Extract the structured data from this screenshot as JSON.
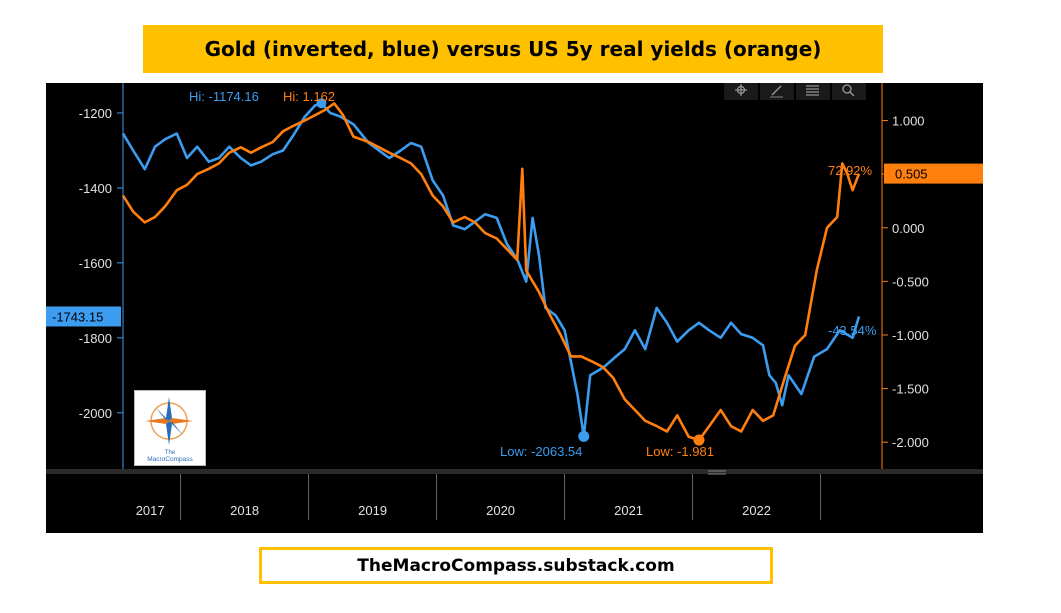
{
  "header": {
    "title": "Gold (inverted, blue) versus US 5y real yields (orange)"
  },
  "footer": {
    "source": "TheMacroCompass.substack.com"
  },
  "logo": {
    "line1": "The",
    "line2": "MacroCompass"
  },
  "colors": {
    "gold": "#3c9cf0",
    "yields": "#ff7f0e",
    "background": "#000000",
    "accent": "#ffc000"
  },
  "toolbar": {
    "icons": [
      "crosshair-icon",
      "pencil-icon",
      "news-icon",
      "search-icon"
    ]
  },
  "chart_data": {
    "type": "line",
    "x": [
      "2017",
      "2018",
      "2019",
      "2020",
      "2021",
      "2022"
    ],
    "axes": {
      "left": {
        "ticks": [
          "-1200",
          "-1400",
          "-1600",
          "-1800",
          "-2000"
        ],
        "values": [
          -1200,
          -1400,
          -1600,
          -1800,
          -2000
        ],
        "ylim": [
          -2150,
          -1120
        ]
      },
      "right": {
        "ticks": [
          "1.000",
          "0.500",
          "0.000",
          "-0.500",
          "-1.000",
          "-1.500",
          "-2.000"
        ],
        "values": [
          1.0,
          0.5,
          0.0,
          -0.5,
          -1.0,
          -1.5,
          -2.0
        ],
        "ylim": [
          -2.25,
          1.35
        ]
      }
    },
    "series": [
      {
        "axis": "left",
        "points": [
          [
            2017.0,
            -1255
          ],
          [
            2017.08,
            -1300
          ],
          [
            2017.17,
            -1350
          ],
          [
            2017.25,
            -1290
          ],
          [
            2017.33,
            -1270
          ],
          [
            2017.42,
            -1255
          ],
          [
            2017.5,
            -1320
          ],
          [
            2017.58,
            -1290
          ],
          [
            2017.67,
            -1330
          ],
          [
            2017.75,
            -1320
          ],
          [
            2017.83,
            -1290
          ],
          [
            2017.92,
            -1320
          ],
          [
            2018.0,
            -1340
          ],
          [
            2018.08,
            -1330
          ],
          [
            2018.17,
            -1310
          ],
          [
            2018.25,
            -1300
          ],
          [
            2018.33,
            -1260
          ],
          [
            2018.42,
            -1210
          ],
          [
            2018.5,
            -1180
          ],
          [
            2018.55,
            -1174
          ],
          [
            2018.62,
            -1200
          ],
          [
            2018.7,
            -1210
          ],
          [
            2018.8,
            -1230
          ],
          [
            2018.92,
            -1280
          ],
          [
            2019.0,
            -1300
          ],
          [
            2019.08,
            -1320
          ],
          [
            2019.17,
            -1300
          ],
          [
            2019.25,
            -1280
          ],
          [
            2019.33,
            -1290
          ],
          [
            2019.42,
            -1380
          ],
          [
            2019.5,
            -1420
          ],
          [
            2019.58,
            -1500
          ],
          [
            2019.67,
            -1510
          ],
          [
            2019.75,
            -1490
          ],
          [
            2019.83,
            -1470
          ],
          [
            2019.92,
            -1480
          ],
          [
            2020.0,
            -1550
          ],
          [
            2020.08,
            -1590
          ],
          [
            2020.15,
            -1650
          ],
          [
            2020.2,
            -1480
          ],
          [
            2020.25,
            -1580
          ],
          [
            2020.3,
            -1720
          ],
          [
            2020.38,
            -1740
          ],
          [
            2020.45,
            -1780
          ],
          [
            2020.55,
            -1950
          ],
          [
            2020.6,
            -2063
          ],
          [
            2020.65,
            -1900
          ],
          [
            2020.75,
            -1880
          ],
          [
            2020.85,
            -1850
          ],
          [
            2020.92,
            -1830
          ],
          [
            2021.0,
            -1780
          ],
          [
            2021.08,
            -1830
          ],
          [
            2021.17,
            -1720
          ],
          [
            2021.25,
            -1760
          ],
          [
            2021.33,
            -1810
          ],
          [
            2021.42,
            -1780
          ],
          [
            2021.5,
            -1760
          ],
          [
            2021.58,
            -1780
          ],
          [
            2021.67,
            -1800
          ],
          [
            2021.75,
            -1760
          ],
          [
            2021.83,
            -1790
          ],
          [
            2021.92,
            -1800
          ],
          [
            2022.0,
            -1820
          ],
          [
            2022.05,
            -1900
          ],
          [
            2022.1,
            -1920
          ],
          [
            2022.15,
            -1980
          ],
          [
            2022.2,
            -1900
          ],
          [
            2022.3,
            -1950
          ],
          [
            2022.4,
            -1850
          ],
          [
            2022.5,
            -1830
          ],
          [
            2022.6,
            -1780
          ],
          [
            2022.7,
            -1800
          ],
          [
            2022.75,
            -1743
          ]
        ],
        "hi_label": "Hi: -1174.16",
        "low_label": "Low: -2063.54",
        "change_label": "-43.54%",
        "last_label": "-1743.15"
      },
      {
        "axis": "right",
        "points": [
          [
            2017.0,
            0.3
          ],
          [
            2017.08,
            0.15
          ],
          [
            2017.17,
            0.05
          ],
          [
            2017.25,
            0.1
          ],
          [
            2017.33,
            0.2
          ],
          [
            2017.42,
            0.35
          ],
          [
            2017.5,
            0.4
          ],
          [
            2017.58,
            0.5
          ],
          [
            2017.67,
            0.55
          ],
          [
            2017.75,
            0.6
          ],
          [
            2017.83,
            0.7
          ],
          [
            2017.92,
            0.75
          ],
          [
            2018.0,
            0.7
          ],
          [
            2018.08,
            0.75
          ],
          [
            2018.17,
            0.8
          ],
          [
            2018.25,
            0.9
          ],
          [
            2018.33,
            0.95
          ],
          [
            2018.42,
            1.0
          ],
          [
            2018.5,
            1.05
          ],
          [
            2018.58,
            1.1
          ],
          [
            2018.65,
            1.16
          ],
          [
            2018.72,
            1.05
          ],
          [
            2018.8,
            0.85
          ],
          [
            2018.92,
            0.8
          ],
          [
            2019.0,
            0.75
          ],
          [
            2019.08,
            0.7
          ],
          [
            2019.17,
            0.65
          ],
          [
            2019.25,
            0.6
          ],
          [
            2019.33,
            0.5
          ],
          [
            2019.42,
            0.3
          ],
          [
            2019.5,
            0.2
          ],
          [
            2019.58,
            0.05
          ],
          [
            2019.67,
            0.1
          ],
          [
            2019.75,
            0.05
          ],
          [
            2019.83,
            -0.05
          ],
          [
            2019.92,
            -0.1
          ],
          [
            2020.0,
            -0.2
          ],
          [
            2020.08,
            -0.3
          ],
          [
            2020.12,
            0.55
          ],
          [
            2020.15,
            -0.4
          ],
          [
            2020.25,
            -0.6
          ],
          [
            2020.33,
            -0.8
          ],
          [
            2020.42,
            -1.0
          ],
          [
            2020.5,
            -1.2
          ],
          [
            2020.58,
            -1.2
          ],
          [
            2020.67,
            -1.25
          ],
          [
            2020.75,
            -1.3
          ],
          [
            2020.83,
            -1.4
          ],
          [
            2020.92,
            -1.6
          ],
          [
            2021.0,
            -1.7
          ],
          [
            2021.08,
            -1.8
          ],
          [
            2021.17,
            -1.85
          ],
          [
            2021.25,
            -1.9
          ],
          [
            2021.33,
            -1.75
          ],
          [
            2021.42,
            -1.95
          ],
          [
            2021.5,
            -1.98
          ],
          [
            2021.58,
            -1.85
          ],
          [
            2021.67,
            -1.7
          ],
          [
            2021.75,
            -1.85
          ],
          [
            2021.83,
            -1.9
          ],
          [
            2021.92,
            -1.7
          ],
          [
            2022.0,
            -1.8
          ],
          [
            2022.08,
            -1.75
          ],
          [
            2022.17,
            -1.4
          ],
          [
            2022.25,
            -1.1
          ],
          [
            2022.33,
            -1.0
          ],
          [
            2022.42,
            -0.4
          ],
          [
            2022.5,
            0.0
          ],
          [
            2022.58,
            0.1
          ],
          [
            2022.62,
            0.6
          ],
          [
            2022.66,
            0.5
          ],
          [
            2022.7,
            0.35
          ],
          [
            2022.75,
            0.505
          ]
        ],
        "hi_label": "Hi: 1.162",
        "low_label": "Low: -1.981",
        "change_label": "72.92%",
        "last_label": "0.505"
      }
    ]
  }
}
